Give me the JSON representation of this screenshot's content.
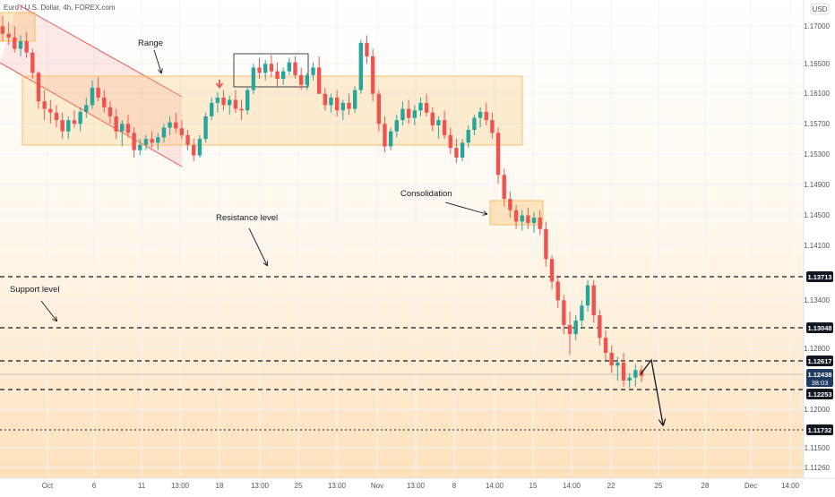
{
  "chart_data": {
    "type": "candlestick",
    "symbol": "Euro / U.S. Dollar, 4h, FOREX.com",
    "currency": "USD",
    "ylim": [
      1.1108,
      1.1745
    ],
    "y_ticks": [
      "1.17000",
      "1.16500",
      "1.16100",
      "1.15700",
      "1.15300",
      "1.14900",
      "1.14500",
      "1.14100",
      "1.13400",
      "1.12800",
      "1.12000",
      "1.11500",
      "1.11260"
    ],
    "x_ticks": [
      "Oct",
      "6",
      "11",
      "13:00",
      "18",
      "13:00",
      "25",
      "13:00",
      "Nov",
      "13:00",
      "8",
      "14:00",
      "15",
      "14:00",
      "22",
      "25",
      "28",
      "Dec",
      "14:00"
    ],
    "current_price": {
      "value": "1.12438",
      "countdown": "38:03",
      "color": "#1e3a5f"
    },
    "levels": [
      {
        "value": "1.13713",
        "style": "dashed"
      },
      {
        "value": "1.13048",
        "style": "dashed"
      },
      {
        "value": "1.12617",
        "style": "dashed"
      },
      {
        "value": "1.12253",
        "style": "dashed"
      },
      {
        "value": "1.11732",
        "style": "dotted"
      }
    ],
    "annotations": [
      {
        "text": "Range"
      },
      {
        "text": "Consolidation"
      },
      {
        "text": "Resistance level"
      },
      {
        "text": "Support level"
      }
    ],
    "colors": {
      "up": "#26a69a",
      "down": "#ef5350",
      "zone": "#f8b24a",
      "channel": "#ef5350",
      "grid": "#f0f3fa"
    },
    "zones": [
      {
        "from": "Sep 30",
        "to": "Nov 15",
        "low": 1.1542,
        "high": 1.1637
      },
      {
        "from": "Nov 14",
        "to": "Nov 17",
        "low": 1.1435,
        "high": 1.147
      }
    ],
    "series": [
      {
        "values": [
          [
            1.171,
            1.1724,
            1.169,
            1.17
          ],
          [
            1.17,
            1.1715,
            1.1685,
            1.1695
          ],
          [
            1.1695,
            1.171,
            1.1675,
            1.168
          ],
          [
            1.168,
            1.1698,
            1.167,
            1.169
          ],
          [
            1.169,
            1.1702,
            1.1668,
            1.1675
          ],
          [
            1.1675,
            1.168,
            1.164,
            1.1648
          ],
          [
            1.1648,
            1.165,
            1.16,
            1.161
          ],
          [
            1.161,
            1.1625,
            1.1585,
            1.16
          ],
          [
            1.16,
            1.1612,
            1.158,
            1.1595
          ],
          [
            1.1595,
            1.1605,
            1.1575,
            1.1585
          ],
          [
            1.1585,
            1.1595,
            1.156,
            1.157
          ],
          [
            1.157,
            1.159,
            1.156,
            1.1585
          ],
          [
            1.1585,
            1.1598,
            1.1575,
            1.158
          ],
          [
            1.158,
            1.1602,
            1.157,
            1.1596
          ],
          [
            1.1596,
            1.1615,
            1.1588,
            1.1605
          ],
          [
            1.1605,
            1.1638,
            1.16,
            1.1628
          ],
          [
            1.1628,
            1.1642,
            1.161,
            1.1615
          ],
          [
            1.1615,
            1.1625,
            1.1595,
            1.1602
          ],
          [
            1.1602,
            1.161,
            1.158,
            1.159
          ],
          [
            1.159,
            1.16,
            1.156,
            1.157
          ],
          [
            1.157,
            1.1585,
            1.155,
            1.158
          ],
          [
            1.158,
            1.1592,
            1.1562,
            1.1568
          ],
          [
            1.1568,
            1.1575,
            1.1535,
            1.1545
          ],
          [
            1.1545,
            1.156,
            1.1538,
            1.1552
          ],
          [
            1.1552,
            1.1565,
            1.1545,
            1.156
          ],
          [
            1.156,
            1.157,
            1.1548,
            1.1555
          ],
          [
            1.1555,
            1.1568,
            1.1545,
            1.1562
          ],
          [
            1.1562,
            1.158,
            1.1555,
            1.1575
          ],
          [
            1.1575,
            1.159,
            1.1565,
            1.1582
          ],
          [
            1.1582,
            1.1595,
            1.1568,
            1.1574
          ],
          [
            1.1574,
            1.1585,
            1.156,
            1.1565
          ],
          [
            1.1565,
            1.1572,
            1.1545,
            1.1552
          ],
          [
            1.1552,
            1.156,
            1.153,
            1.1538
          ],
          [
            1.1538,
            1.1565,
            1.1535,
            1.156
          ],
          [
            1.156,
            1.1595,
            1.1555,
            1.159
          ],
          [
            1.159,
            1.1615,
            1.1585,
            1.1608
          ],
          [
            1.1608,
            1.1622,
            1.1595,
            1.1615
          ],
          [
            1.1615,
            1.1625,
            1.1598,
            1.1605
          ],
          [
            1.1605,
            1.1618,
            1.1592,
            1.1612
          ],
          [
            1.1612,
            1.1625,
            1.1595,
            1.16
          ],
          [
            1.16,
            1.1612,
            1.1585,
            1.1598
          ],
          [
            1.1598,
            1.163,
            1.1592,
            1.1625
          ],
          [
            1.1625,
            1.166,
            1.162,
            1.1655
          ],
          [
            1.1655,
            1.1668,
            1.164,
            1.1648
          ],
          [
            1.1648,
            1.1665,
            1.1638,
            1.166
          ],
          [
            1.166,
            1.1672,
            1.1642,
            1.165
          ],
          [
            1.165,
            1.1662,
            1.163,
            1.164
          ],
          [
            1.164,
            1.1655,
            1.1632,
            1.165
          ],
          [
            1.165,
            1.1668,
            1.1645,
            1.1662
          ],
          [
            1.1662,
            1.167,
            1.164,
            1.1645
          ],
          [
            1.1645,
            1.1655,
            1.1625,
            1.1632
          ],
          [
            1.1632,
            1.1648,
            1.1625,
            1.1645
          ],
          [
            1.1645,
            1.1662,
            1.1638,
            1.1655
          ],
          [
            1.1655,
            1.167,
            1.163,
            1.162
          ],
          [
            1.162,
            1.1628,
            1.1598,
            1.1605
          ],
          [
            1.1605,
            1.162,
            1.1595,
            1.1615
          ],
          [
            1.1615,
            1.1625,
            1.159,
            1.1598
          ],
          [
            1.1598,
            1.1612,
            1.1585,
            1.1608
          ],
          [
            1.1608,
            1.162,
            1.1592,
            1.16
          ],
          [
            1.16,
            1.163,
            1.1595,
            1.1625
          ],
          [
            1.1625,
            1.1692,
            1.162,
            1.1688
          ],
          [
            1.1688,
            1.1698,
            1.166,
            1.167
          ],
          [
            1.167,
            1.168,
            1.161,
            1.162
          ],
          [
            1.162,
            1.1625,
            1.157,
            1.158
          ],
          [
            1.158,
            1.159,
            1.1542,
            1.155
          ],
          [
            1.155,
            1.1575,
            1.1545,
            1.157
          ],
          [
            1.157,
            1.1592,
            1.1562,
            1.1585
          ],
          [
            1.1585,
            1.161,
            1.1578,
            1.16
          ],
          [
            1.16,
            1.1612,
            1.158,
            1.1588
          ],
          [
            1.1588,
            1.1605,
            1.1578,
            1.1598
          ],
          [
            1.1598,
            1.1615,
            1.159,
            1.1608
          ],
          [
            1.1608,
            1.162,
            1.159,
            1.1595
          ],
          [
            1.1595,
            1.1602,
            1.157,
            1.1578
          ],
          [
            1.1578,
            1.159,
            1.156,
            1.1585
          ],
          [
            1.1585,
            1.1598,
            1.156,
            1.1565
          ],
          [
            1.1565,
            1.1575,
            1.154,
            1.1548
          ],
          [
            1.1548,
            1.156,
            1.1528,
            1.1535
          ],
          [
            1.1535,
            1.156,
            1.153,
            1.1555
          ],
          [
            1.1555,
            1.1578,
            1.1548,
            1.1572
          ],
          [
            1.1572,
            1.1592,
            1.1565,
            1.1588
          ],
          [
            1.1588,
            1.1602,
            1.1575,
            1.1596
          ],
          [
            1.1596,
            1.1608,
            1.1578,
            1.1585
          ],
          [
            1.1585,
            1.1595,
            1.156,
            1.1568
          ],
          [
            1.1568,
            1.1575,
            1.15,
            1.1512
          ],
          [
            1.1512,
            1.152,
            1.147,
            1.148
          ],
          [
            1.148,
            1.149,
            1.1455,
            1.1465
          ],
          [
            1.1465,
            1.1472,
            1.144,
            1.145
          ],
          [
            1.145,
            1.1465,
            1.1438,
            1.1458
          ],
          [
            1.1458,
            1.1468,
            1.144,
            1.1448
          ],
          [
            1.1448,
            1.1462,
            1.1435,
            1.1455
          ],
          [
            1.1455,
            1.1465,
            1.1432,
            1.144
          ],
          [
            1.144,
            1.145,
            1.139,
            1.14
          ],
          [
            1.14,
            1.1405,
            1.136,
            1.137
          ],
          [
            1.137,
            1.1378,
            1.1335,
            1.1345
          ],
          [
            1.1345,
            1.1352,
            1.13,
            1.1312
          ],
          [
            1.1312,
            1.133,
            1.1272,
            1.13
          ],
          [
            1.13,
            1.1325,
            1.1292,
            1.1318
          ],
          [
            1.1318,
            1.1345,
            1.131,
            1.1338
          ],
          [
            1.1338,
            1.1372,
            1.133,
            1.1365
          ],
          [
            1.1365,
            1.1372,
            1.1315,
            1.1325
          ],
          [
            1.1325,
            1.1332,
            1.1285,
            1.1295
          ],
          [
            1.1295,
            1.1305,
            1.1265,
            1.1275
          ],
          [
            1.1275,
            1.1285,
            1.1248,
            1.1258
          ],
          [
            1.1258,
            1.127,
            1.1238,
            1.1262
          ],
          [
            1.1262,
            1.1275,
            1.123,
            1.1238
          ],
          [
            1.1238,
            1.1248,
            1.1228,
            1.1242
          ],
          [
            1.1242,
            1.126,
            1.123,
            1.1252
          ],
          [
            1.1252,
            1.1258,
            1.1236,
            1.1244
          ]
        ]
      }
    ]
  }
}
